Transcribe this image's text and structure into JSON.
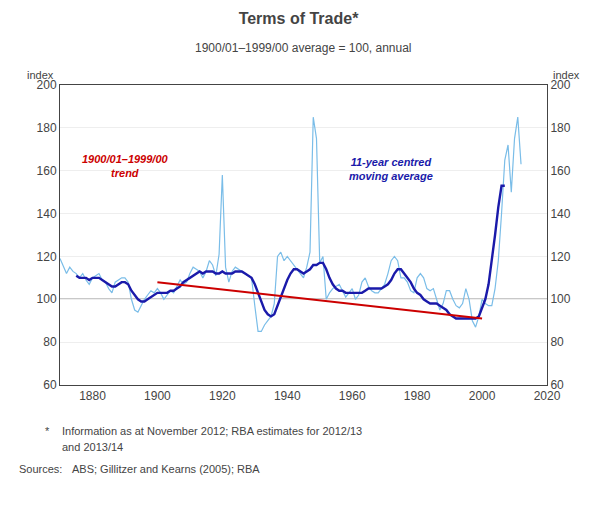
{
  "chart_data": {
    "type": "line",
    "title": "Terms of Trade*",
    "subtitle": "1900/01–1999/00 average = 100, annual",
    "ylabel": "index",
    "y2label": "index",
    "xlim": [
      1870,
      2020
    ],
    "xticks": [
      1880,
      1900,
      1920,
      1940,
      1960,
      1980,
      2000,
      2020
    ],
    "ylim": [
      60,
      200
    ],
    "yticks": [
      60,
      80,
      100,
      120,
      140,
      160,
      180,
      200
    ],
    "y2lim": [
      60,
      200
    ],
    "y2ticks": [
      60,
      80,
      100,
      120,
      140,
      160,
      180,
      200
    ],
    "grid": true,
    "hline": {
      "value": 100,
      "color": "#000000"
    },
    "series": [
      {
        "color": "#7abde8",
        "x": [
          1870,
          1871,
          1872,
          1873,
          1874,
          1875,
          1876,
          1877,
          1878,
          1879,
          1880,
          1881,
          1882,
          1883,
          1884,
          1885,
          1886,
          1887,
          1888,
          1889,
          1890,
          1891,
          1892,
          1893,
          1894,
          1895,
          1896,
          1897,
          1898,
          1899,
          1900,
          1901,
          1902,
          1903,
          1904,
          1905,
          1906,
          1907,
          1908,
          1909,
          1910,
          1911,
          1912,
          1913,
          1914,
          1915,
          1916,
          1917,
          1918,
          1919,
          1920,
          1921,
          1922,
          1923,
          1924,
          1925,
          1926,
          1927,
          1928,
          1929,
          1930,
          1931,
          1932,
          1933,
          1934,
          1935,
          1936,
          1937,
          1938,
          1939,
          1940,
          1941,
          1942,
          1943,
          1944,
          1945,
          1946,
          1947,
          1948,
          1949,
          1950,
          1951,
          1952,
          1953,
          1954,
          1955,
          1956,
          1957,
          1958,
          1959,
          1960,
          1961,
          1962,
          1963,
          1964,
          1965,
          1966,
          1967,
          1968,
          1969,
          1970,
          1971,
          1972,
          1973,
          1974,
          1975,
          1976,
          1977,
          1978,
          1979,
          1980,
          1981,
          1982,
          1983,
          1984,
          1985,
          1986,
          1987,
          1988,
          1989,
          1990,
          1991,
          1992,
          1993,
          1994,
          1995,
          1996,
          1997,
          1998,
          1999,
          2000,
          2001,
          2002,
          2003,
          2004,
          2005,
          2006,
          2007,
          2008,
          2009,
          2010,
          2011,
          2012
        ],
        "values": [
          119,
          115,
          112,
          115,
          113,
          112,
          110,
          112,
          109,
          107,
          110,
          111,
          112,
          109,
          108,
          105,
          103,
          108,
          109,
          110,
          110,
          108,
          100,
          95,
          94,
          97,
          100,
          102,
          104,
          103,
          105,
          103,
          100,
          102,
          104,
          103,
          106,
          109,
          107,
          108,
          112,
          115,
          114,
          113,
          110,
          113,
          118,
          116,
          111,
          121,
          158,
          115,
          108,
          113,
          115,
          114,
          113,
          112,
          111,
          110,
          97,
          85,
          85,
          88,
          90,
          92,
          98,
          120,
          122,
          118,
          120,
          118,
          116,
          114,
          112,
          110,
          115,
          122,
          185,
          175,
          117,
          120,
          100,
          103,
          105,
          106,
          107,
          104,
          101,
          103,
          105,
          100,
          102,
          108,
          110,
          106,
          104,
          103,
          103,
          105,
          107,
          112,
          118,
          120,
          118,
          110,
          110,
          108,
          104,
          103,
          110,
          112,
          110,
          105,
          104,
          105,
          100,
          95,
          98,
          104,
          104,
          100,
          97,
          96,
          98,
          105,
          100,
          90,
          87,
          92,
          100,
          98,
          97,
          97,
          105,
          118,
          140,
          165,
          172,
          150,
          175,
          185,
          163
        ]
      },
      {
        "color": "#1a1aaa",
        "x": [
          1875,
          1876,
          1877,
          1878,
          1879,
          1880,
          1881,
          1882,
          1883,
          1884,
          1885,
          1886,
          1887,
          1888,
          1889,
          1890,
          1891,
          1892,
          1893,
          1894,
          1895,
          1896,
          1897,
          1898,
          1899,
          1900,
          1901,
          1902,
          1903,
          1904,
          1905,
          1906,
          1907,
          1908,
          1909,
          1910,
          1911,
          1912,
          1913,
          1914,
          1915,
          1916,
          1917,
          1918,
          1919,
          1920,
          1921,
          1922,
          1923,
          1924,
          1925,
          1926,
          1927,
          1928,
          1929,
          1930,
          1931,
          1932,
          1933,
          1934,
          1935,
          1936,
          1937,
          1938,
          1939,
          1940,
          1941,
          1942,
          1943,
          1944,
          1945,
          1946,
          1947,
          1948,
          1949,
          1950,
          1951,
          1952,
          1953,
          1954,
          1955,
          1956,
          1957,
          1958,
          1959,
          1960,
          1961,
          1962,
          1963,
          1964,
          1965,
          1966,
          1967,
          1968,
          1969,
          1970,
          1971,
          1972,
          1973,
          1974,
          1975,
          1976,
          1977,
          1978,
          1979,
          1980,
          1981,
          1982,
          1983,
          1984,
          1985,
          1986,
          1987,
          1988,
          1989,
          1990,
          1991,
          1992,
          1993,
          1994,
          1995,
          1996,
          1997,
          1998,
          1999,
          2000,
          2001,
          2002,
          2003,
          2004,
          2005,
          2006,
          2007
        ],
        "values": [
          111,
          110,
          110,
          110,
          109,
          110,
          110,
          110,
          109,
          108,
          107,
          106,
          106,
          107,
          108,
          108,
          107,
          104,
          102,
          100,
          99,
          99,
          100,
          101,
          102,
          103,
          103,
          103,
          103,
          104,
          104,
          105,
          106,
          108,
          109,
          110,
          111,
          112,
          113,
          112,
          113,
          113,
          113,
          112,
          112,
          113,
          112,
          112,
          112,
          113,
          113,
          113,
          112,
          111,
          110,
          107,
          103,
          99,
          95,
          93,
          92,
          93,
          97,
          101,
          105,
          109,
          112,
          114,
          114,
          113,
          112,
          113,
          114,
          116,
          116,
          117,
          117,
          114,
          110,
          107,
          105,
          104,
          104,
          103,
          103,
          103,
          103,
          103,
          103,
          104,
          105,
          105,
          105,
          105,
          105,
          106,
          107,
          109,
          112,
          114,
          114,
          112,
          110,
          108,
          105,
          103,
          102,
          100,
          99,
          98,
          98,
          98,
          97,
          96,
          95,
          93,
          92,
          91,
          91,
          91,
          91,
          91,
          91,
          91,
          92,
          96,
          100,
          107,
          118,
          130,
          143,
          153,
          153
        ]
      },
      {
        "color": "#cc0000",
        "x": [
          1900,
          2000
        ],
        "values": [
          108,
          91
        ]
      }
    ],
    "annotations": [
      {
        "text": [
          "1900/01–1999/00",
          "trend"
        ],
        "color": "#cc0000"
      },
      {
        "text": [
          "11-year centred",
          "moving average"
        ],
        "color": "#1a1aaa"
      }
    ],
    "footnote_mark": "*",
    "footnote": [
      "Information as at November 2012; RBA estimates for 2012/13",
      "and 2013/14"
    ],
    "sources_label": "Sources:",
    "sources": "ABS; Gillitzer and Kearns (2005); RBA"
  }
}
